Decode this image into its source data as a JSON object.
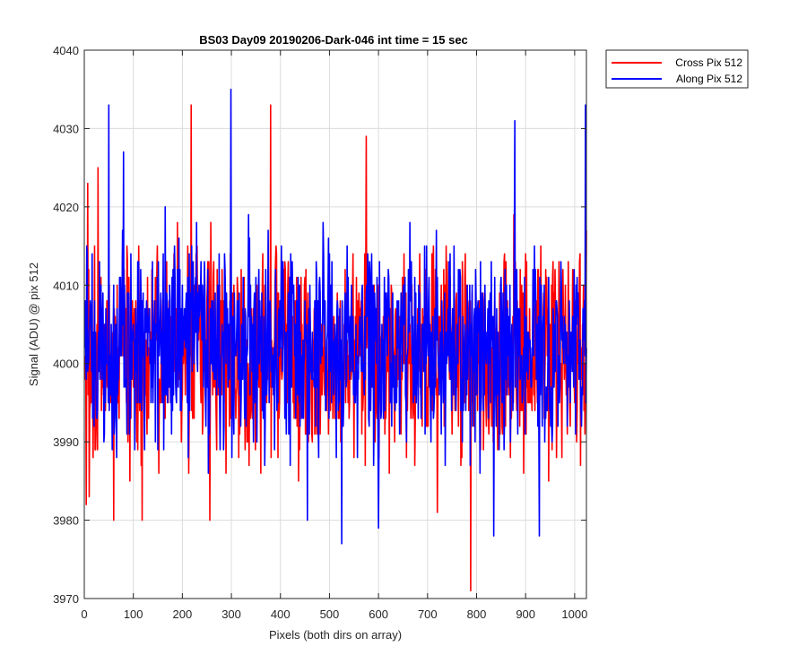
{
  "chart_data": {
    "type": "line",
    "title": "BS03 Day09 20190206-Dark-046 int time = 15 sec",
    "xlabel": "Pixels (both dirs on array)",
    "ylabel": "Signal (ADU) @ pix 512",
    "xlim": [
      0,
      1024
    ],
    "ylim": [
      3970,
      4040
    ],
    "xticks": [
      0,
      100,
      200,
      300,
      400,
      500,
      600,
      700,
      800,
      900,
      1000
    ],
    "yticks": [
      3970,
      3980,
      3990,
      4000,
      4010,
      4020,
      4030,
      4040
    ],
    "grid": true,
    "legend_position": "top-right, outside plot area",
    "series": [
      {
        "name": "Cross Pix 512",
        "color": "#ff0000",
        "x_range": [
          1,
          1024
        ],
        "sampled_points": [
          {
            "x": 1,
            "y": 4001
          },
          {
            "x": 4,
            "y": 3982
          },
          {
            "x": 7,
            "y": 4023
          },
          {
            "x": 10,
            "y": 3983
          },
          {
            "x": 28,
            "y": 4025
          },
          {
            "x": 60,
            "y": 3980
          },
          {
            "x": 118,
            "y": 3980
          },
          {
            "x": 218,
            "y": 4033
          },
          {
            "x": 256,
            "y": 3980
          },
          {
            "x": 380,
            "y": 4033
          },
          {
            "x": 575,
            "y": 4029
          },
          {
            "x": 720,
            "y": 3981
          },
          {
            "x": 788,
            "y": 3971
          },
          {
            "x": 1024,
            "y": 4017
          }
        ]
      },
      {
        "name": "Along Pix 512",
        "color": "#0000ff",
        "x_range": [
          1,
          1024
        ],
        "sampled_points": [
          {
            "x": 1,
            "y": 4002
          },
          {
            "x": 50,
            "y": 4033
          },
          {
            "x": 80,
            "y": 4027
          },
          {
            "x": 299,
            "y": 4035
          },
          {
            "x": 455,
            "y": 3980
          },
          {
            "x": 525,
            "y": 3977
          },
          {
            "x": 600,
            "y": 3979
          },
          {
            "x": 835,
            "y": 3978
          },
          {
            "x": 878,
            "y": 4031
          },
          {
            "x": 928,
            "y": 3978
          },
          {
            "x": 1022,
            "y": 4033
          }
        ]
      }
    ]
  }
}
